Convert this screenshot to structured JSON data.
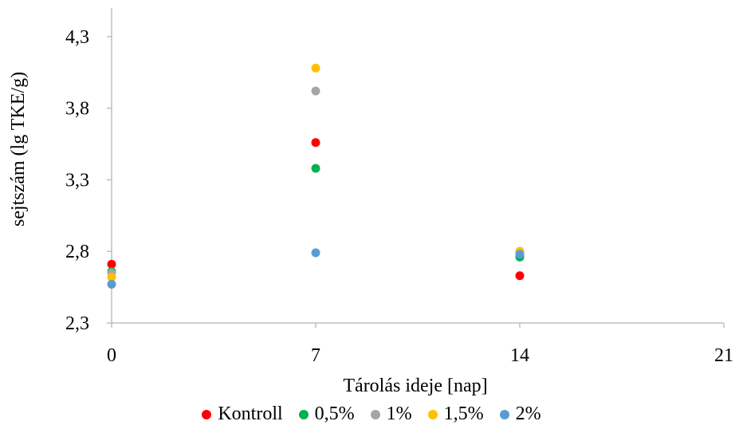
{
  "chart_data": {
    "type": "scatter",
    "title": "",
    "xlabel": "Tárolás ideje [nap]",
    "ylabel": "sejtszám (lg TKE/g)",
    "xlim": [
      0,
      21
    ],
    "ylim": [
      2.3,
      4.5
    ],
    "xticks": [
      0,
      7,
      14,
      21
    ],
    "xtick_labels": [
      "0",
      "7",
      "14",
      "21"
    ],
    "yticks": [
      2.3,
      2.8,
      3.3,
      3.8,
      4.3
    ],
    "ytick_labels": [
      "2,3",
      "2,8",
      "3,3",
      "3,8",
      "4,3"
    ],
    "grid": false,
    "legend_position": "bottom",
    "error_bars": true,
    "series": [
      {
        "name": "Kontroll",
        "color": "#ff0000",
        "x": [
          0,
          7,
          14
        ],
        "y": [
          2.71,
          3.56,
          2.63
        ],
        "err": [
          0.01,
          0.01,
          0.01
        ]
      },
      {
        "name": "0,5%",
        "color": "#00b050",
        "x": [
          0,
          7,
          14
        ],
        "y": [
          2.66,
          3.38,
          2.76
        ],
        "err": [
          0.01,
          0.01,
          0.01
        ]
      },
      {
        "name": "1%",
        "color": "#a5a5a5",
        "x": [
          0,
          7,
          14
        ],
        "y": [
          2.65,
          3.92,
          2.8
        ],
        "err": [
          0.01,
          0.01,
          0.01
        ]
      },
      {
        "name": "1,5%",
        "color": "#ffc000",
        "x": [
          0,
          7,
          14
        ],
        "y": [
          2.62,
          4.08,
          2.8
        ],
        "err": [
          0.01,
          0.01,
          0.01
        ]
      },
      {
        "name": "2%",
        "color": "#5b9bd5",
        "x": [
          0,
          7,
          14
        ],
        "y": [
          2.57,
          2.79,
          2.78
        ],
        "err": [
          0.01,
          0.01,
          0.01
        ]
      }
    ]
  }
}
